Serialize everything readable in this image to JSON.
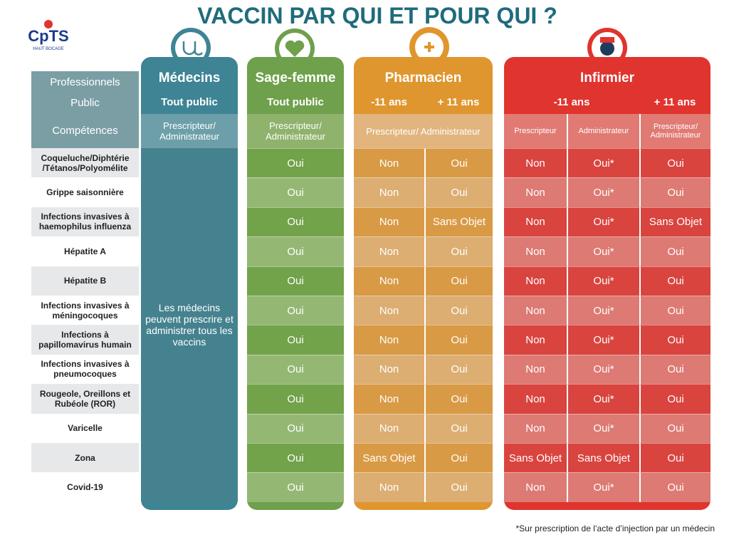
{
  "logo": {
    "name": "CpTS",
    "subtitle": "HAUT BOCAGE"
  },
  "title": "VACCIN PAR QUI ET POUR QUI ?",
  "row_headers": [
    "Professionnels",
    "Public",
    "Compétences"
  ],
  "vaccines": [
    "Coqueluche/Diphtérie /Tétanos/Polyomélite",
    "Grippe saisonnière",
    "Infections invasives à haemophilus influenza",
    "Hépatite A",
    "Hépatite B",
    "Infections invasives à méningocoques",
    "Infections à papillomavirus humain",
    "Infections invasives à pneumocoques",
    "Rougeole, Oreillons et Rubéole (ROR)",
    "Varicelle",
    "Zona",
    "Covid-19"
  ],
  "professions": [
    {
      "name": "Médecins",
      "publics": [
        "Tout public"
      ],
      "competences": [
        "Prescripteur/ Administrateur"
      ],
      "note": "Les médecins peuvent prescrire et administrer tous les vaccins"
    },
    {
      "name": "Sage-femme",
      "publics": [
        "Tout public"
      ],
      "competences": [
        "Prescripteur/ Administrateur"
      ],
      "columns": [
        [
          "Oui",
          "Oui",
          "Oui",
          "Oui",
          "Oui",
          "Oui",
          "Oui",
          "Oui",
          "Oui",
          "Oui",
          "Oui",
          "Oui"
        ]
      ]
    },
    {
      "name": "Pharmacien",
      "publics": [
        "-11 ans",
        "+ 11 ans"
      ],
      "competences": [
        "Prescripteur/ Administrateur"
      ],
      "columns": [
        [
          "Non",
          "Non",
          "Non",
          "Non",
          "Non",
          "Non",
          "Non",
          "Non",
          "Non",
          "Non",
          "Sans Objet",
          "Non"
        ],
        [
          "Oui",
          "Oui",
          "Sans Objet",
          "Oui",
          "Oui",
          "Oui",
          "Oui",
          "Oui",
          "Oui",
          "Oui",
          "Oui",
          "Oui"
        ]
      ]
    },
    {
      "name": "Infirmier",
      "publics": [
        "-11 ans",
        "+ 11 ans"
      ],
      "competences": [
        "Prescripteur",
        "Administrateur",
        "Prescripteur/ Administrateur"
      ],
      "columns": [
        [
          "Non",
          "Non",
          "Non",
          "Non",
          "Non",
          "Non",
          "Non",
          "Non",
          "Non",
          "Non",
          "Sans Objet",
          "Non"
        ],
        [
          "Oui*",
          "Oui*",
          "Oui*",
          "Oui*",
          "Oui*",
          "Oui*",
          "Oui*",
          "Oui*",
          "Oui*",
          "Oui*",
          "Sans Objet",
          "Oui*"
        ],
        [
          "Oui",
          "Oui",
          "Sans Objet",
          "Oui",
          "Oui",
          "Oui",
          "Oui",
          "Oui",
          "Oui",
          "Oui",
          "Oui",
          "Oui"
        ]
      ]
    }
  ],
  "footnote": "*Sur prescription de l’acte d’injection par un médecin"
}
